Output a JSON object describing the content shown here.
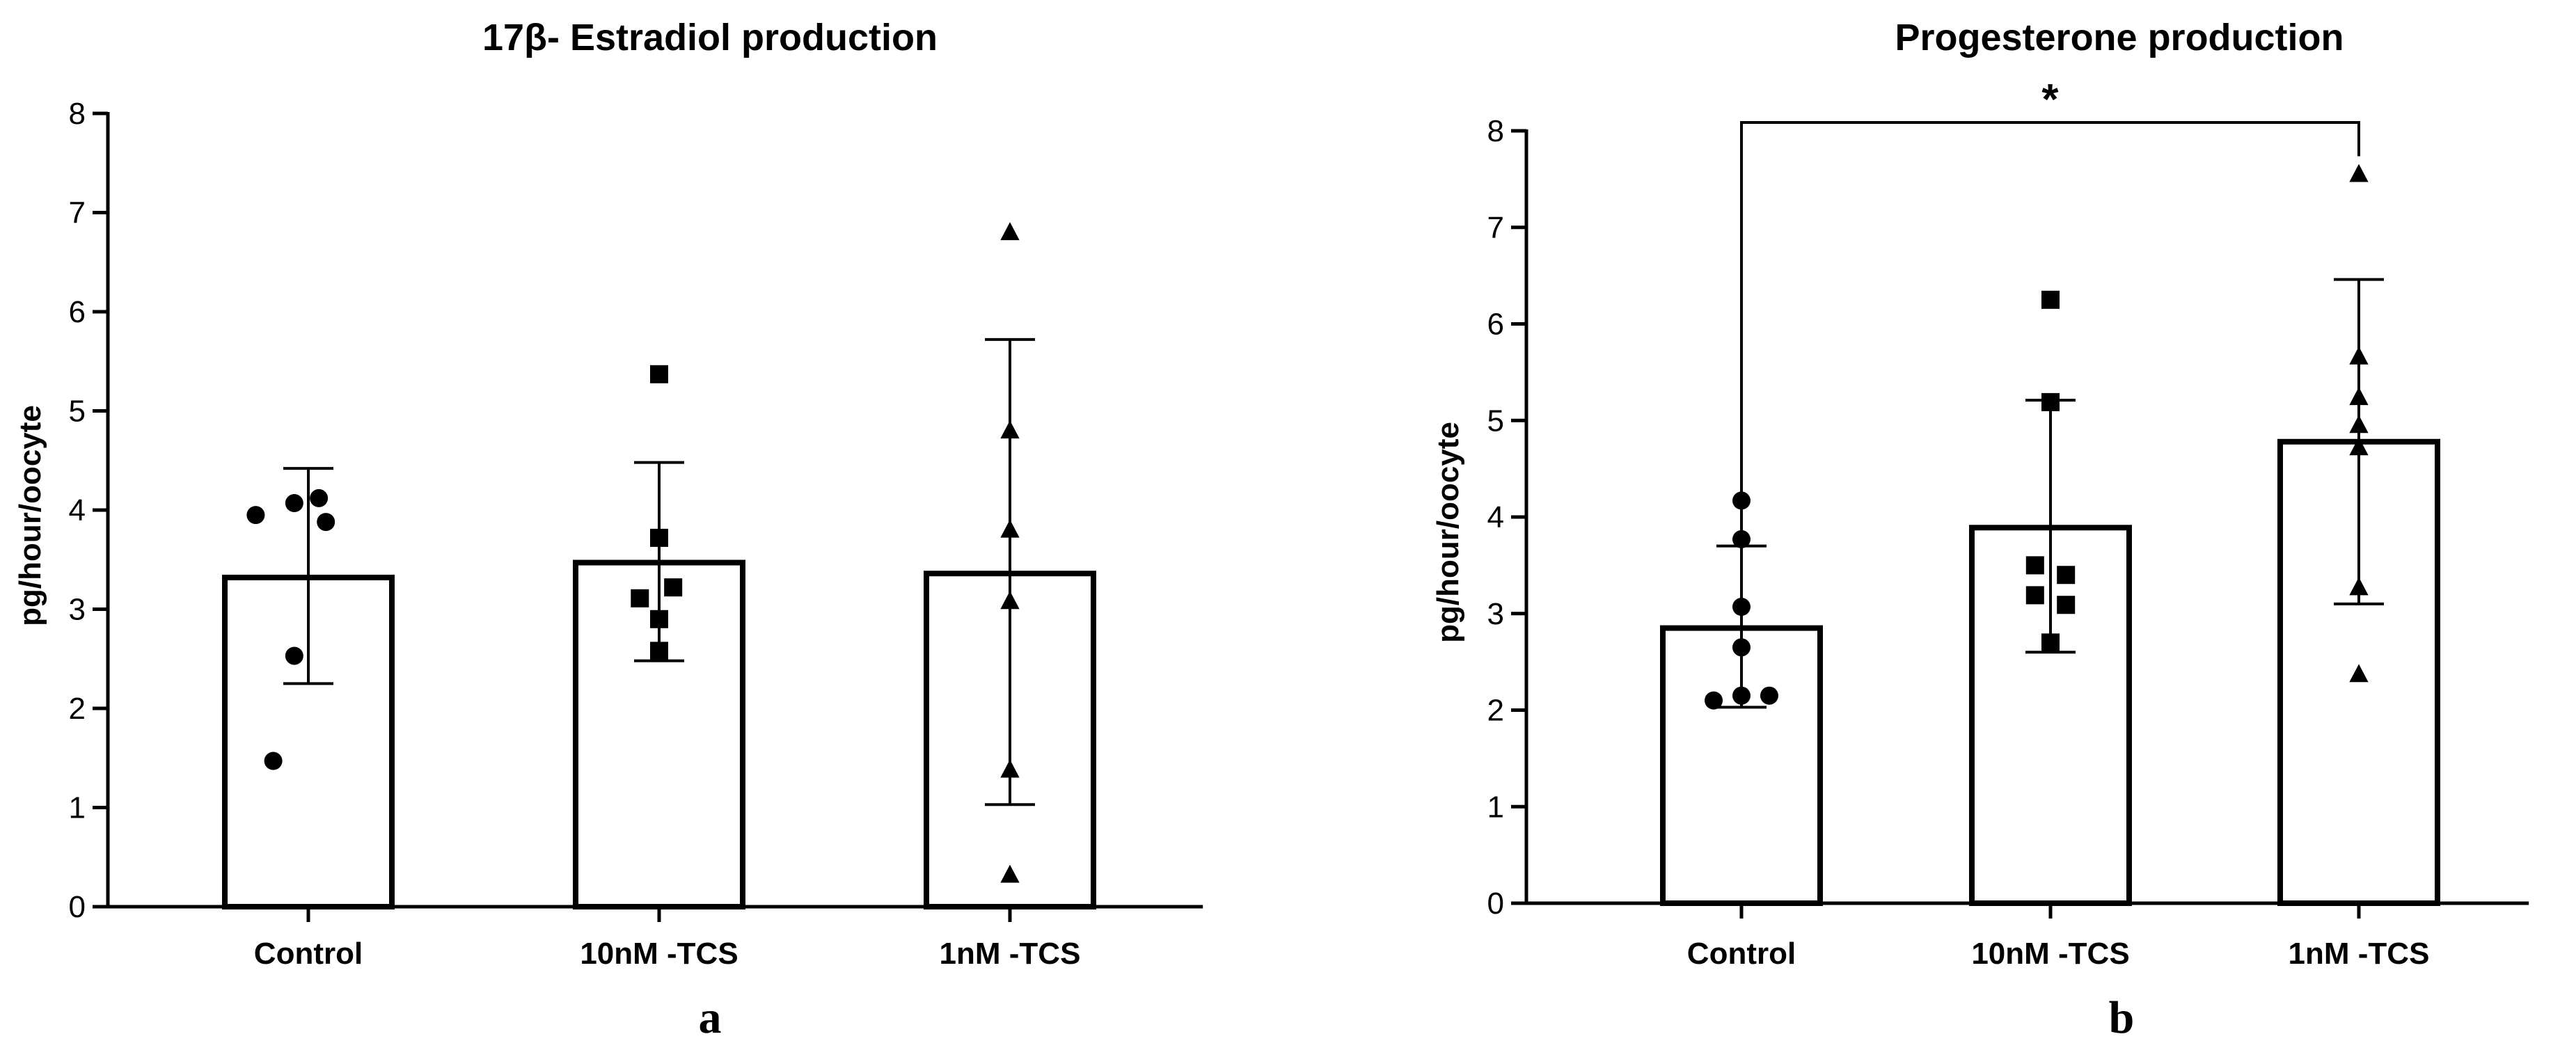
{
  "colors": {
    "ink": "#000000",
    "bar_fill": "#ffffff",
    "background": "#ffffff"
  },
  "chart_data": [
    {
      "panel_letter": "a",
      "type": "bar",
      "title": "17β-  Estradiol production",
      "xlabel": "",
      "ylabel": "pg/hour/oocyte",
      "ylim": [
        0,
        8
      ],
      "yticks": [
        "0",
        "1",
        "2",
        "3",
        "4",
        "5",
        "6",
        "7",
        "8"
      ],
      "categories": [
        "Control",
        "10nM -TCS",
        "1nM -TCS"
      ],
      "values": [
        3.32,
        3.47,
        3.36
      ],
      "error_low": [
        2.25,
        2.48,
        1.03
      ],
      "error_high": [
        4.42,
        4.48,
        5.72
      ],
      "markers": [
        "circle",
        "square",
        "triangle"
      ],
      "points": [
        [
          {
            "dx": -0.3,
            "y": 3.95
          },
          {
            "dx": -0.08,
            "y": 4.07
          },
          {
            "dx": 0.06,
            "y": 4.12
          },
          {
            "dx": 0.1,
            "y": 3.88
          },
          {
            "dx": -0.08,
            "y": 2.53
          },
          {
            "dx": -0.2,
            "y": 1.47
          }
        ],
        [
          {
            "dx": 0.0,
            "y": 5.37
          },
          {
            "dx": 0.0,
            "y": 3.72
          },
          {
            "dx": -0.11,
            "y": 3.11
          },
          {
            "dx": 0.08,
            "y": 3.22
          },
          {
            "dx": 0.0,
            "y": 2.9
          },
          {
            "dx": 0.0,
            "y": 2.58
          }
        ],
        [
          {
            "dx": 0.0,
            "y": 6.8
          },
          {
            "dx": 0.0,
            "y": 4.8
          },
          {
            "dx": 0.0,
            "y": 3.8
          },
          {
            "dx": 0.0,
            "y": 3.08
          },
          {
            "dx": 0.0,
            "y": 1.38
          },
          {
            "dx": 0.0,
            "y": 0.32
          }
        ]
      ],
      "significance": null
    },
    {
      "panel_letter": "b",
      "type": "bar",
      "title": "Progesterone production",
      "xlabel": "",
      "ylabel": "pg/hour/oocyte",
      "ylim": [
        0,
        8
      ],
      "yticks": [
        "0",
        "1",
        "2",
        "3",
        "4",
        "5",
        "6",
        "7",
        "8"
      ],
      "categories": [
        "Control",
        "10nM -TCS",
        "1nM -TCS"
      ],
      "values": [
        2.85,
        3.89,
        4.78
      ],
      "error_low": [
        2.03,
        2.6,
        3.1
      ],
      "error_high": [
        3.7,
        5.21,
        6.46
      ],
      "markers": [
        "circle",
        "square",
        "triangle"
      ],
      "points": [
        [
          {
            "dx": 0.0,
            "y": 4.17
          },
          {
            "dx": 0.0,
            "y": 3.77
          },
          {
            "dx": 0.0,
            "y": 3.07
          },
          {
            "dx": 0.0,
            "y": 2.65
          },
          {
            "dx": -0.18,
            "y": 2.1
          },
          {
            "dx": 0.0,
            "y": 2.15
          },
          {
            "dx": 0.18,
            "y": 2.15
          }
        ],
        [
          {
            "dx": 0.0,
            "y": 6.25
          },
          {
            "dx": 0.0,
            "y": 5.19
          },
          {
            "dx": -0.1,
            "y": 3.5
          },
          {
            "dx": 0.1,
            "y": 3.4
          },
          {
            "dx": -0.1,
            "y": 3.19
          },
          {
            "dx": 0.1,
            "y": 3.09
          },
          {
            "dx": 0.0,
            "y": 2.7
          }
        ],
        [
          {
            "dx": 0.0,
            "y": 7.55
          },
          {
            "dx": 0.0,
            "y": 5.66
          },
          {
            "dx": 0.0,
            "y": 5.24
          },
          {
            "dx": 0.0,
            "y": 4.95
          },
          {
            "dx": 0.0,
            "y": 4.72
          },
          {
            "dx": 0.0,
            "y": 3.27
          },
          {
            "dx": 0.0,
            "y": 2.37
          }
        ]
      ],
      "significance": {
        "from": 0,
        "to": 2,
        "label": "*",
        "y": 8.0
      }
    }
  ]
}
